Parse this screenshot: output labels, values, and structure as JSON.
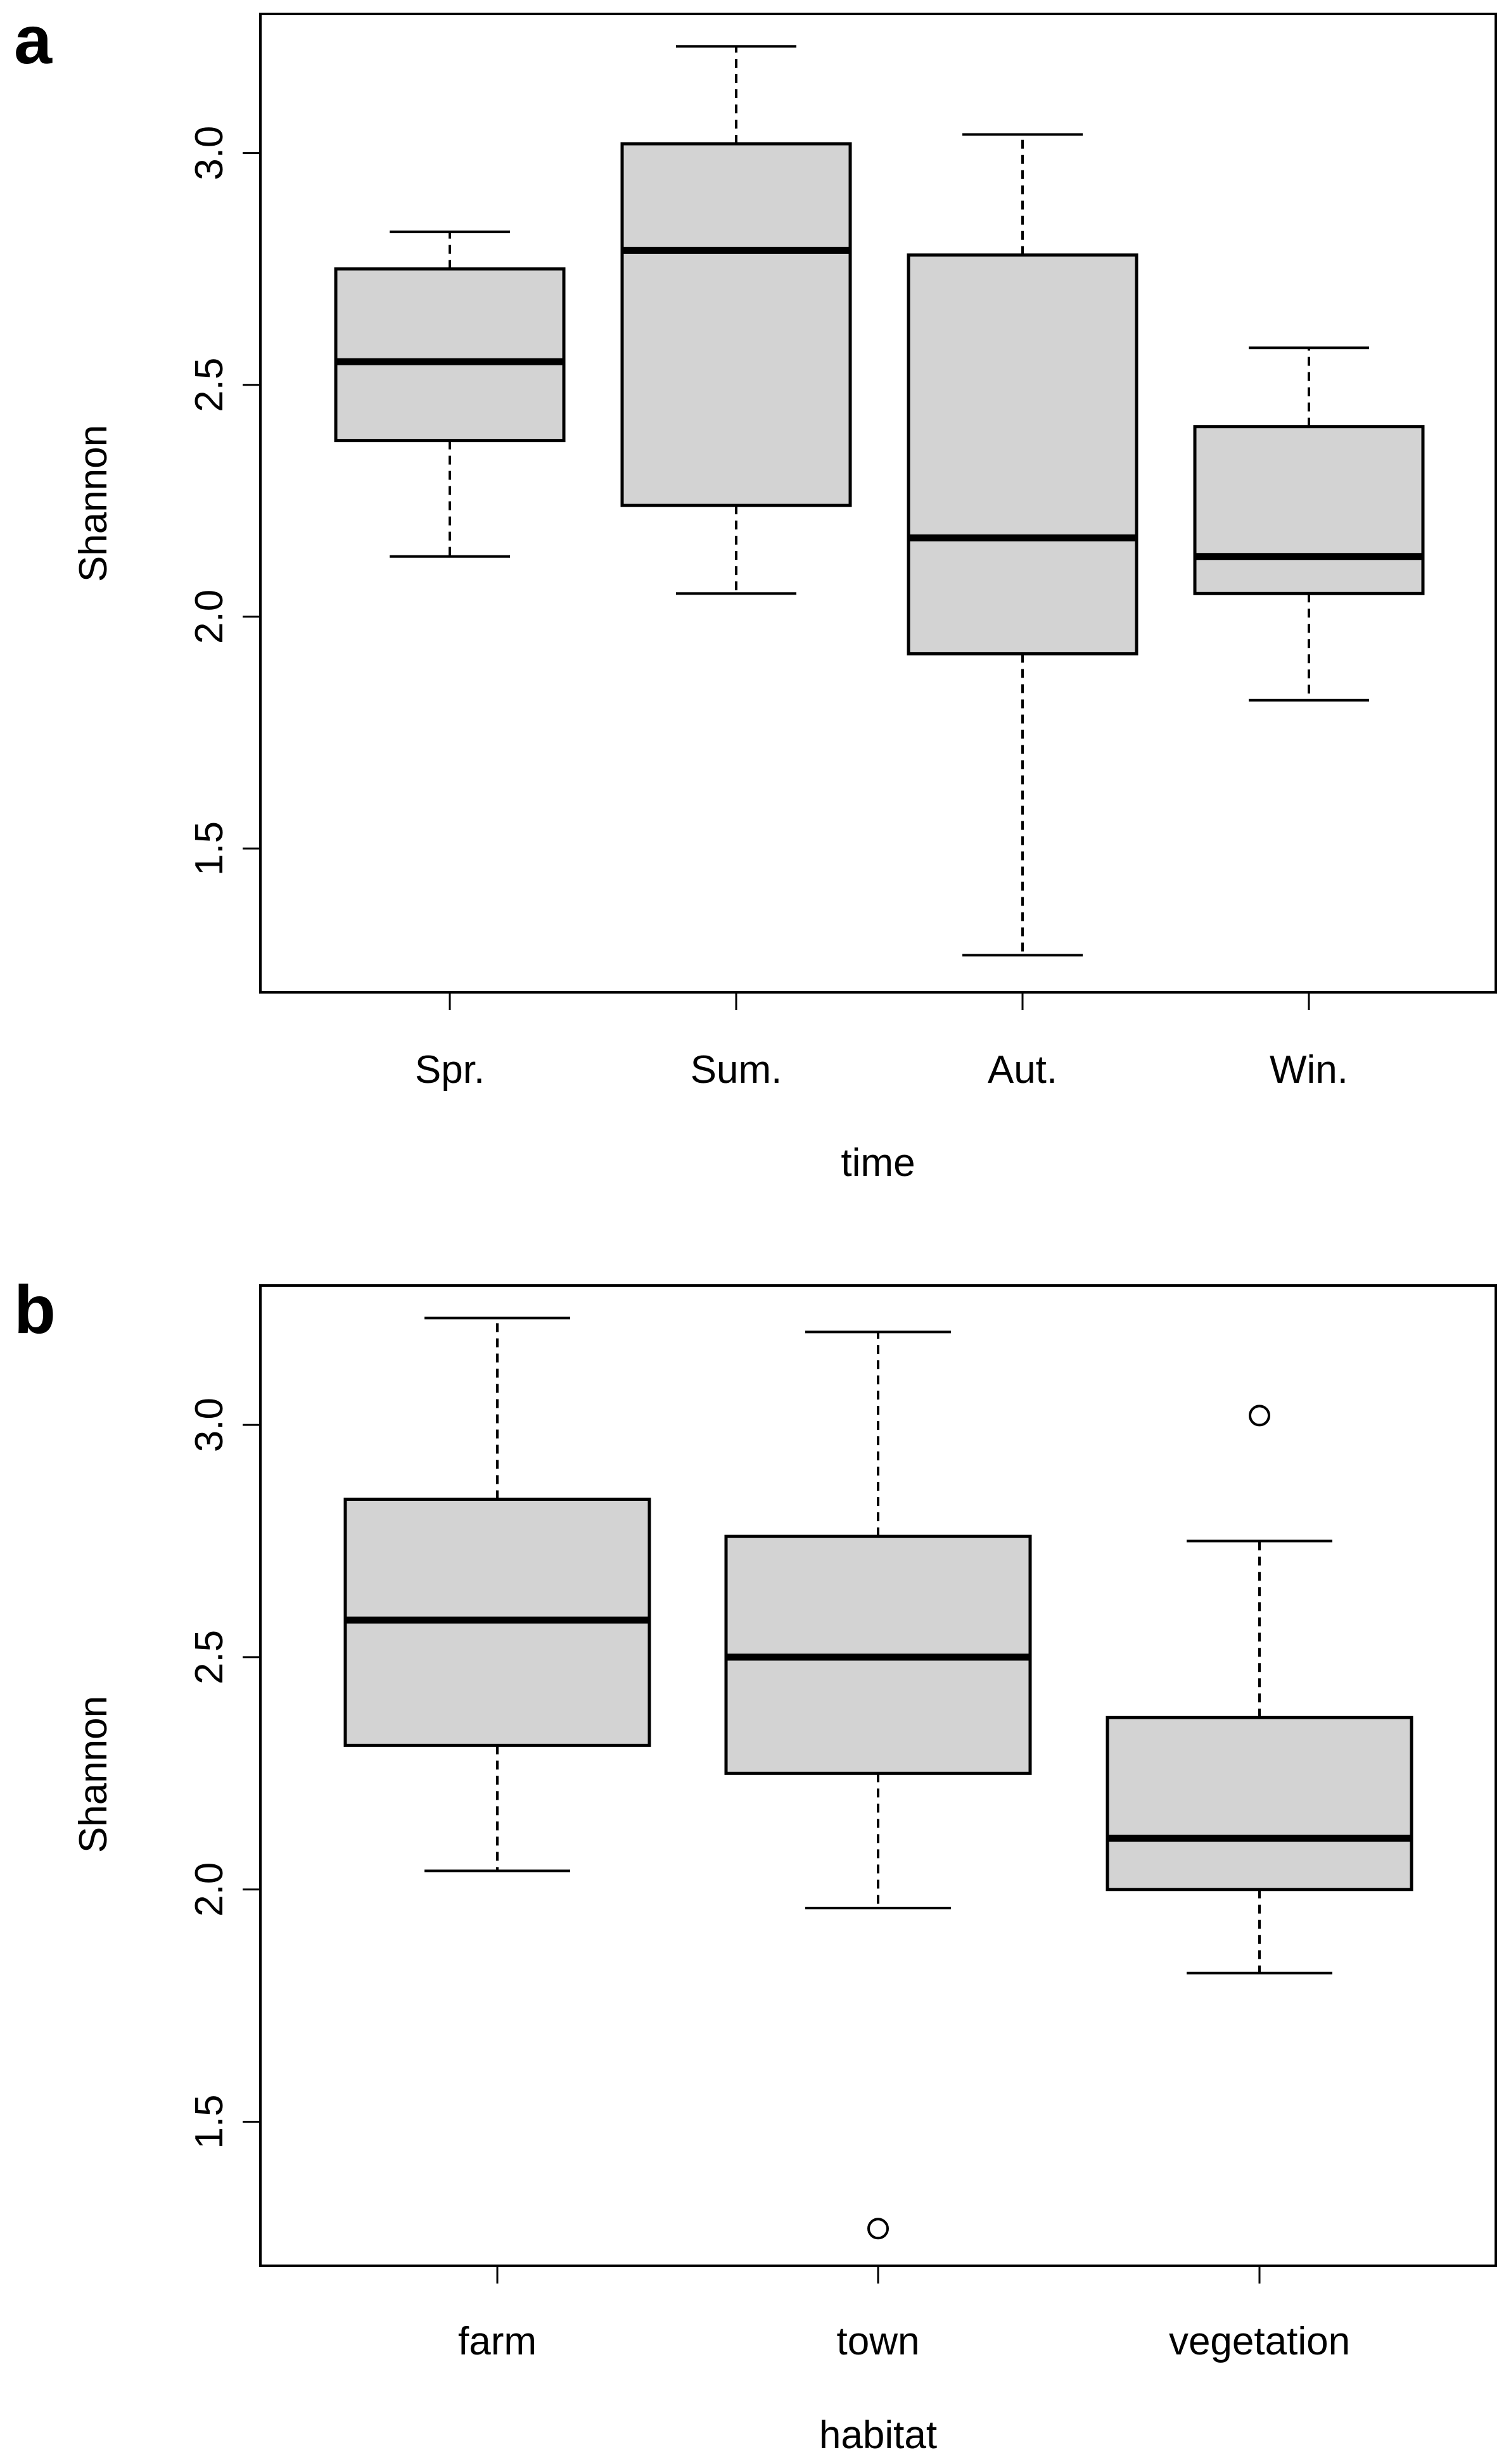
{
  "chart_data": [
    {
      "panel_label": "a",
      "type": "boxplot",
      "title": "",
      "xlabel": "time",
      "ylabel": "Shannon",
      "ylim": [
        1.19,
        3.3
      ],
      "yticks": [
        1.5,
        2.0,
        2.5,
        3.0
      ],
      "ytick_labels": [
        "1.5",
        "2.0",
        "2.5",
        "3.0"
      ],
      "categories": [
        "Spr.",
        "Sum.",
        "Aut.",
        "Win."
      ],
      "boxes": [
        {
          "category": "Spr.",
          "whisker_low": 2.13,
          "q1": 2.38,
          "median": 2.55,
          "q3": 2.75,
          "whisker_high": 2.83,
          "outliers": []
        },
        {
          "category": "Sum.",
          "whisker_low": 2.05,
          "q1": 2.24,
          "median": 2.79,
          "q3": 3.02,
          "whisker_high": 3.23,
          "outliers": []
        },
        {
          "category": "Aut.",
          "whisker_low": 1.27,
          "q1": 1.92,
          "median": 2.17,
          "q3": 2.78,
          "whisker_high": 3.04,
          "outliers": []
        },
        {
          "category": "Win.",
          "whisker_low": 1.82,
          "q1": 2.05,
          "median": 2.13,
          "q3": 2.41,
          "whisker_high": 2.58,
          "outliers": []
        }
      ],
      "box_fill": "#d3d3d3"
    },
    {
      "panel_label": "b",
      "type": "boxplot",
      "title": "",
      "xlabel": "habitat",
      "ylabel": "Shannon",
      "ylim": [
        1.19,
        3.3
      ],
      "yticks": [
        1.5,
        2.0,
        2.5,
        3.0
      ],
      "ytick_labels": [
        "1.5",
        "2.0",
        "2.5",
        "3.0"
      ],
      "categories": [
        "farm",
        "town",
        "vegetation"
      ],
      "boxes": [
        {
          "category": "farm",
          "whisker_low": 2.04,
          "q1": 2.31,
          "median": 2.58,
          "q3": 2.84,
          "whisker_high": 3.23,
          "outliers": []
        },
        {
          "category": "town",
          "whisker_low": 1.96,
          "q1": 2.25,
          "median": 2.5,
          "q3": 2.76,
          "whisker_high": 3.2,
          "outliers": [
            1.27
          ]
        },
        {
          "category": "vegetation",
          "whisker_low": 1.82,
          "q1": 2.0,
          "median": 2.11,
          "q3": 2.37,
          "whisker_high": 2.75,
          "outliers": [
            3.02
          ]
        }
      ],
      "box_fill": "#d3d3d3"
    }
  ]
}
